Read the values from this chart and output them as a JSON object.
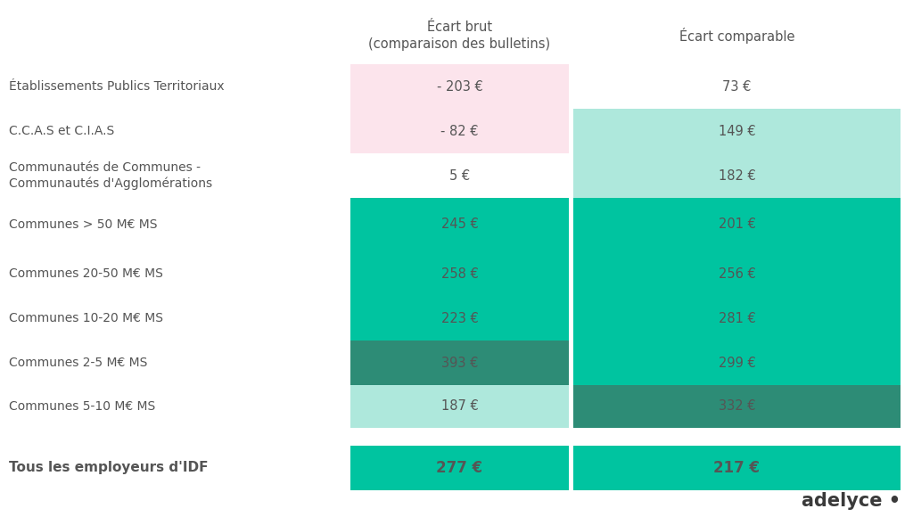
{
  "col1_header": "Écart brut\n(comparaison des bulletins)",
  "col2_header": "Écart comparable",
  "rows": [
    {
      "label": "Établissements Publics Territoriaux",
      "val1": "- 203 €",
      "val2": "73 €",
      "color1": "#fce4ec",
      "color2": "#ffffff"
    },
    {
      "label": "C.C.A.S et C.I.A.S",
      "val1": "- 82 €",
      "val2": "149 €",
      "color1": "#fce4ec",
      "color2": "#aee8dc"
    },
    {
      "label": "Communautés de Communes -\nCommunautés d'Agglomérations",
      "val1": "5 €",
      "val2": "182 €",
      "color1": "#ffffff",
      "color2": "#aee8dc"
    },
    {
      "label": "Communes > 50 M€ MS",
      "val1": "245 €",
      "val2": "201 €",
      "color1": "#00c4a0",
      "color2": "#00c4a0"
    },
    {
      "label": "Communes 20-50 M€ MS",
      "val1": "258 €",
      "val2": "256 €",
      "color1": "#00c4a0",
      "color2": "#00c4a0"
    },
    {
      "label": "Communes 10-20 M€ MS",
      "val1": "223 €",
      "val2": "281 €",
      "color1": "#00c4a0",
      "color2": "#00c4a0"
    },
    {
      "label": "Communes 2-5 M€ MS",
      "val1": "393 €",
      "val2": "299 €",
      "color1": "#2d8c76",
      "color2": "#00c4a0"
    },
    {
      "label": "Communes 5-10 M€ MS",
      "val1": "187 €",
      "val2": "332 €",
      "color1": "#aee8dc",
      "color2": "#2d8c76"
    }
  ],
  "footer_row": {
    "label": "Tous les employeurs d'IDF",
    "val1": "277 €",
    "val2": "217 €",
    "color1": "#00c4a0",
    "color2": "#00c4a0"
  },
  "bg_color": "#ffffff",
  "text_color": "#555555",
  "text_color_teal": "#444444",
  "brand": "adelyce •",
  "fig_width": 10.24,
  "fig_height": 5.8,
  "dpi": 100
}
